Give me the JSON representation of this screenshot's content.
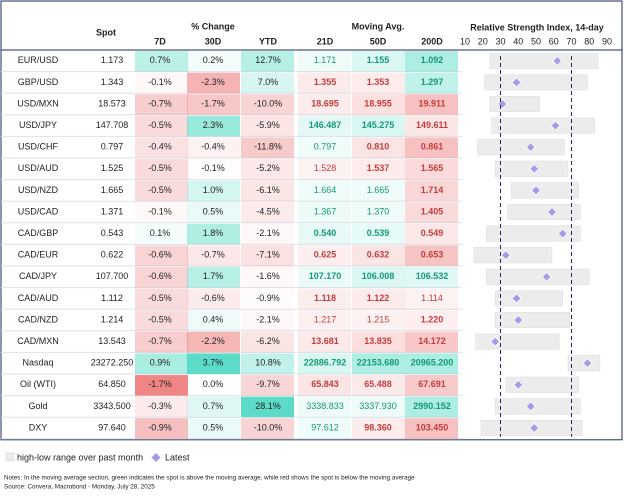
{
  "header": {
    "spot": "Spot",
    "pct_change": "% Change",
    "moving_avg": "Moving Avg.",
    "rsi_title": "Relative Strength Index, 14-day",
    "subheaders": [
      "7D",
      "30D",
      "YTD",
      "21D",
      "50D",
      "200D"
    ]
  },
  "rsi": {
    "xlim": [
      10,
      90
    ],
    "xticks": [
      10,
      20,
      30,
      40,
      50,
      60,
      70,
      80,
      90
    ],
    "marker_lines": [
      30,
      70
    ],
    "range_color": "#ececec",
    "latest_color": "#a99ae8"
  },
  "rows": [
    {
      "name": "EUR/USD",
      "spot": "1.173",
      "d7": "0.7%",
      "d30": "0.2%",
      "ytd": "12.7%",
      "ma21": "1.171",
      "ma50": "1.155",
      "ma200": "1.092",
      "rsi_low": 24,
      "rsi_high": 85,
      "rsi": 62
    },
    {
      "name": "GBP/USD",
      "spot": "1.343",
      "d7": "-0.1%",
      "d30": "-2.3%",
      "ytd": "7.0%",
      "ma21": "1.355",
      "ma50": "1.353",
      "ma200": "1.297",
      "rsi_low": 21,
      "rsi_high": 79,
      "rsi": 39
    },
    {
      "name": "USD/MXN",
      "spot": "18.573",
      "d7": "-0.7%",
      "d30": "-1.7%",
      "ytd": "-10.0%",
      "ma21": "18.695",
      "ma50": "18.955",
      "ma200": "19.911",
      "rsi_low": 24,
      "rsi_high": 52,
      "rsi": 31
    },
    {
      "name": "USD/JPY",
      "spot": "147.708",
      "d7": "-0.5%",
      "d30": "2.3%",
      "ytd": "-5.9%",
      "ma21": "146.487",
      "ma50": "145.275",
      "ma200": "149.611",
      "rsi_low": 25,
      "rsi_high": 83,
      "rsi": 61
    },
    {
      "name": "USD/CHF",
      "spot": "0.797",
      "d7": "-0.4%",
      "d30": "-0.4%",
      "ytd": "-11.8%",
      "ma21": "0.797",
      "ma50": "0.810",
      "ma200": "0.861",
      "rsi_low": 17,
      "rsi_high": 66,
      "rsi": 47
    },
    {
      "name": "USD/AUD",
      "spot": "1.525",
      "d7": "-0.5%",
      "d30": "-0.1%",
      "ytd": "-5.2%",
      "ma21": "1.528",
      "ma50": "1.537",
      "ma200": "1.565",
      "rsi_low": 27,
      "rsi_high": 68,
      "rsi": 49
    },
    {
      "name": "USD/NZD",
      "spot": "1.665",
      "d7": "-0.5%",
      "d30": "1.0%",
      "ytd": "-6.1%",
      "ma21": "1.664",
      "ma50": "1.665",
      "ma200": "1.714",
      "rsi_low": 36,
      "rsi_high": 74,
      "rsi": 50
    },
    {
      "name": "USD/CAD",
      "spot": "1.371",
      "d7": "-0.1%",
      "d30": "0.5%",
      "ytd": "-4.5%",
      "ma21": "1.367",
      "ma50": "1.370",
      "ma200": "1.405",
      "rsi_low": 34,
      "rsi_high": 75,
      "rsi": 59
    },
    {
      "name": "CAD/GBP",
      "spot": "0.543",
      "d7": "0.1%",
      "d30": "1.8%",
      "ytd": "-2.1%",
      "ma21": "0.540",
      "ma50": "0.539",
      "ma200": "0.549",
      "rsi_low": 22,
      "rsi_high": 75,
      "rsi": 65
    },
    {
      "name": "CAD/EUR",
      "spot": "0.622",
      "d7": "-0.6%",
      "d30": "-0.7%",
      "ytd": "-7.1%",
      "ma21": "0.625",
      "ma50": "0.632",
      "ma200": "0.653",
      "rsi_low": 15,
      "rsi_high": 59,
      "rsi": 33
    },
    {
      "name": "CAD/JPY",
      "spot": "107.700",
      "d7": "-0.6%",
      "d30": "1.7%",
      "ytd": "-1.6%",
      "ma21": "107.170",
      "ma50": "106.008",
      "ma200": "106.532",
      "rsi_low": 22,
      "rsi_high": 80,
      "rsi": 56
    },
    {
      "name": "CAD/AUD",
      "spot": "1.112",
      "d7": "-0.5%",
      "d30": "-0.6%",
      "ytd": "-0.9%",
      "ma21": "1.118",
      "ma50": "1.122",
      "ma200": "1.114",
      "rsi_low": 27,
      "rsi_high": 65,
      "rsi": 39
    },
    {
      "name": "CAD/NZD",
      "spot": "1.214",
      "d7": "-0.5%",
      "d30": "0.4%",
      "ytd": "-2.1%",
      "ma21": "1.217",
      "ma50": "1.215",
      "ma200": "1.220",
      "rsi_low": 27,
      "rsi_high": 69,
      "rsi": 40
    },
    {
      "name": "CAD/MXN",
      "spot": "13.543",
      "d7": "-0.7%",
      "d30": "-2.2%",
      "ytd": "-6.2%",
      "ma21": "13.681",
      "ma50": "13.835",
      "ma200": "14.172",
      "rsi_low": 16,
      "rsi_high": 63,
      "rsi": 27
    },
    {
      "name": "Nasdaq",
      "spot": "23272.250",
      "d7": "0.9%",
      "d30": "3.7%",
      "ytd": "10.8%",
      "ma21": "22886.792",
      "ma50": "22153.680",
      "ma200": "20965.200",
      "rsi_low": 68,
      "rsi_high": 86,
      "rsi": 79
    },
    {
      "name": "Oil (WTI)",
      "spot": "64.850",
      "d7": "-1.7%",
      "d30": "0.0%",
      "ytd": "-9.7%",
      "ma21": "65.843",
      "ma50": "65.488",
      "ma200": "67.691",
      "rsi_low": 33,
      "rsi_high": 74,
      "rsi": 40
    },
    {
      "name": "Gold",
      "spot": "3343.500",
      "d7": "-0.3%",
      "d30": "0.7%",
      "ytd": "28.1%",
      "ma21": "3338.833",
      "ma50": "3337.930",
      "ma200": "2990.152",
      "rsi_low": 27,
      "rsi_high": 75,
      "rsi": 47
    },
    {
      "name": "DXY",
      "spot": "97.640",
      "d7": "-0.9%",
      "d30": "0.5%",
      "ytd": "-10.0%",
      "ma21": "97.612",
      "ma50": "98.360",
      "ma200": "103.450",
      "rsi_low": 19,
      "rsi_high": 76,
      "rsi": 49
    }
  ],
  "legend": {
    "range": "high-low range over past month",
    "latest": "Latest"
  },
  "notes": [
    "Notes: In the moving average section, green indicates the spot is above the moving average, while red shows the spot is below the moving average",
    "Source: Convera, Macrobond - Monday, July 28, 2025"
  ]
}
